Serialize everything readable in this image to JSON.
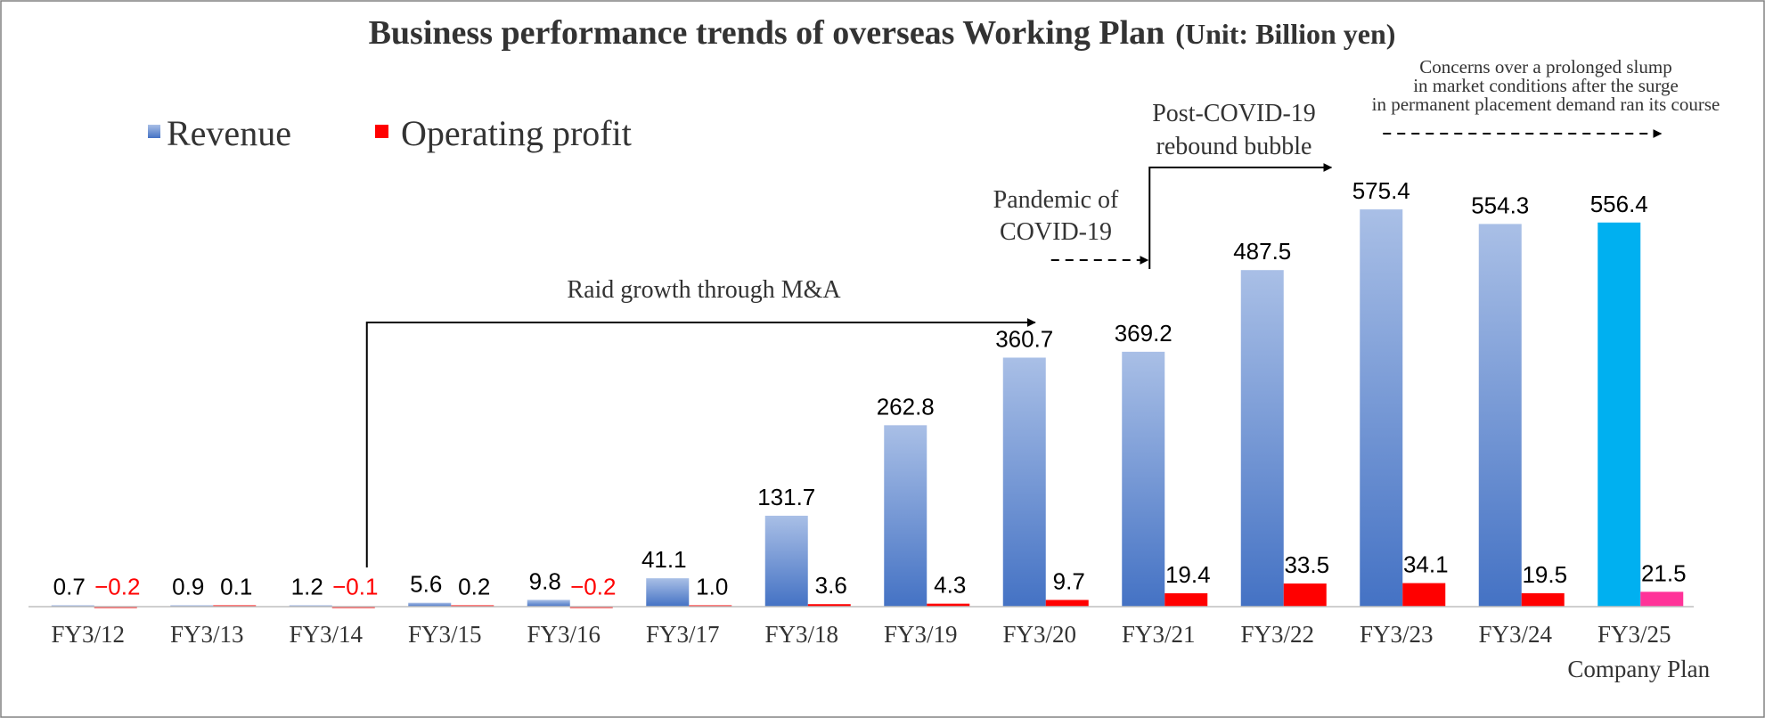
{
  "chart_data": {
    "type": "bar",
    "title": "Business performance trends of overseas Working Plan",
    "title_unit": "(Unit: Billion yen)",
    "categories": [
      "FY3/12",
      "FY3/13",
      "FY3/14",
      "FY3/15",
      "FY3/16",
      "FY3/17",
      "FY3/18",
      "FY3/19",
      "FY3/20",
      "FY3/21",
      "FY3/22",
      "FY3/23",
      "FY3/24",
      "FY3/25"
    ],
    "category_sublabel": {
      "index": 13,
      "text": "Company Plan"
    },
    "series": [
      {
        "name": "Revenue",
        "values": [
          0.7,
          0.9,
          1.2,
          5.6,
          9.8,
          41.1,
          131.7,
          262.8,
          360.7,
          369.2,
          487.5,
          575.4,
          554.3,
          556.4
        ],
        "labels": [
          "0.7",
          "0.9",
          "1.2",
          "5.6",
          "9.8",
          "41.1",
          "131.7",
          "262.8",
          "360.7",
          "369.2",
          "487.5",
          "575.4",
          "554.3",
          "556.4"
        ],
        "color": "#4472c4",
        "color_light": "#a9bfe6",
        "plan_color": "#00b0f0"
      },
      {
        "name": "Operating profit",
        "values": [
          -0.2,
          0.1,
          -0.1,
          0.2,
          -0.2,
          1.0,
          3.6,
          4.3,
          9.7,
          19.4,
          33.5,
          34.1,
          19.5,
          21.5
        ],
        "labels": [
          "−0.2",
          "0.1",
          "−0.1",
          "0.2",
          "−0.2",
          "1.0",
          "3.6",
          "4.3",
          "9.7",
          "19.4",
          "33.5",
          "34.1",
          "19.5",
          "21.5"
        ],
        "color": "#ff0000",
        "plan_color": "#ff3399",
        "negative_label_color": "#ff0000"
      }
    ],
    "ylim": [
      0,
      600
    ],
    "legend_position": "top-left",
    "grid": false,
    "annotations": [
      {
        "text": [
          "Raid growth through M&A"
        ],
        "from": 2,
        "to": 8
      },
      {
        "text": [
          "Pandemic of",
          "COVID-19"
        ],
        "from": 8,
        "to": 9
      },
      {
        "text": [
          "Post-COVID-19",
          "rebound bubble"
        ],
        "from": 9,
        "to": 11
      },
      {
        "text": [
          "Concerns over a prolonged slump",
          "in market conditions after the surge",
          "in permanent placement demand ran its course"
        ],
        "from": 11,
        "to": 13
      }
    ]
  }
}
